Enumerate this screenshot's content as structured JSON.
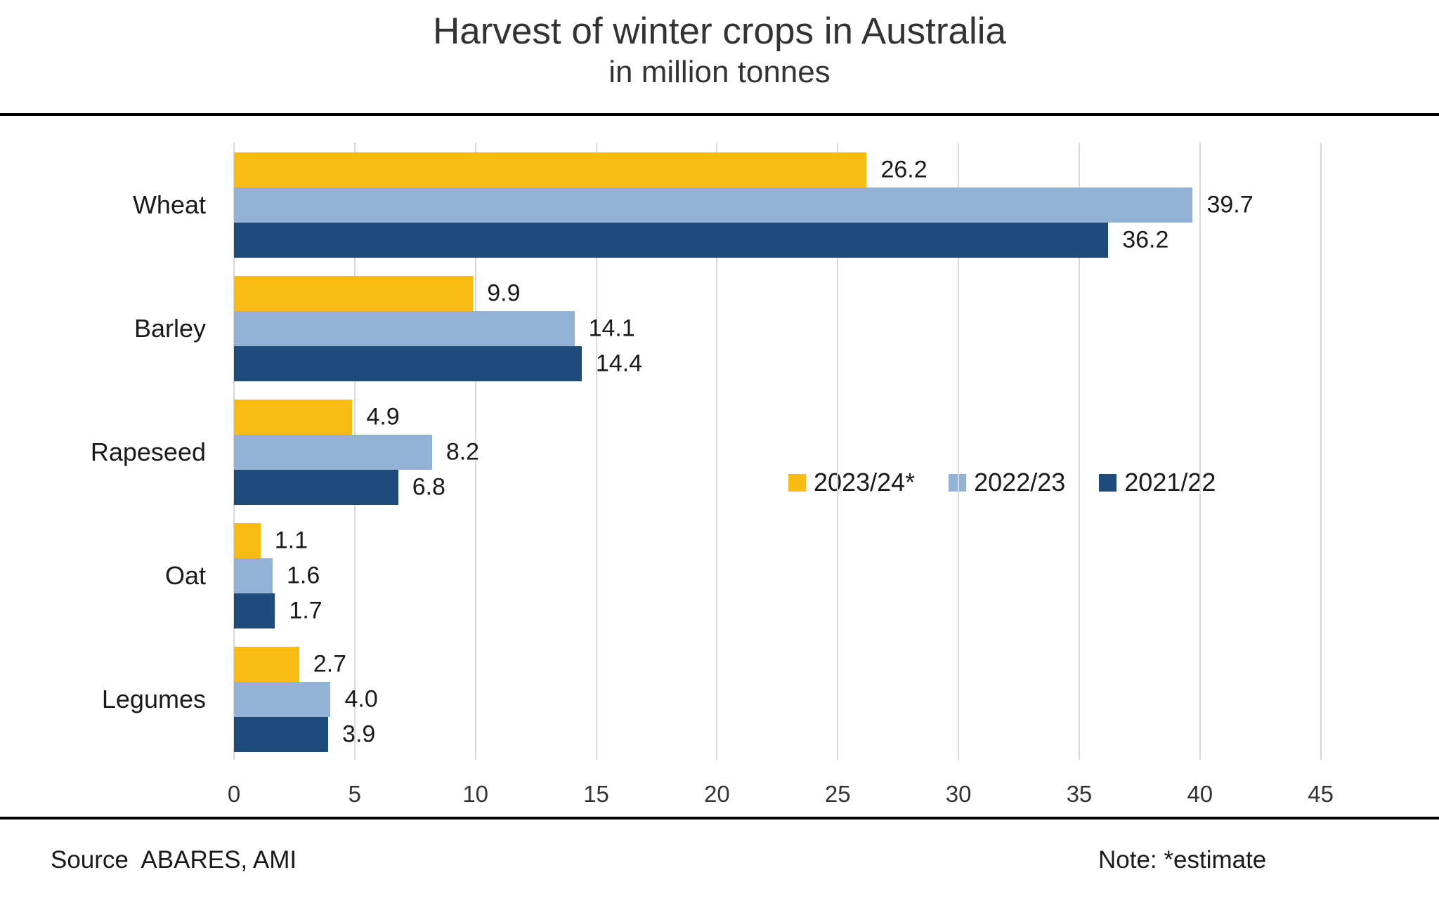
{
  "title": "Harvest of winter crops in Australia",
  "subtitle": "in million tonnes",
  "footer": {
    "source": "Source  ABARES, AMI",
    "note": "Note: *estimate"
  },
  "colors": {
    "grid": "#D9D9D9",
    "rule": "#000000",
    "text": "#1A1A1A",
    "series_2023_24": "#F9BC15",
    "series_2022_23": "#92B2D6",
    "series_2021_22": "#1F4A7C"
  },
  "chart_data": {
    "type": "bar",
    "orientation": "horizontal",
    "title": "Harvest of winter crops in Australia",
    "subtitle": "in million tonnes",
    "categories": [
      "Wheat",
      "Barley",
      "Rapeseed",
      "Oat",
      "Legumes"
    ],
    "series": [
      {
        "name": "2023/24*",
        "color": "#F9BC15",
        "values": [
          26.2,
          9.9,
          4.9,
          1.1,
          2.7
        ]
      },
      {
        "name": "2022/23",
        "color": "#92B2D6",
        "values": [
          39.7,
          14.1,
          8.2,
          1.6,
          4.0
        ]
      },
      {
        "name": "2021/22",
        "color": "#1F4A7C",
        "values": [
          36.2,
          14.4,
          6.8,
          1.7,
          3.9
        ]
      }
    ],
    "xlabel": "",
    "ylabel": "",
    "xlim": [
      0,
      45
    ],
    "x_ticks": [
      0,
      5,
      10,
      15,
      20,
      25,
      30,
      35,
      40,
      45
    ],
    "grid": "vertical",
    "value_labels": true,
    "value_label_format": "0.0",
    "legend_position": "middle-right"
  }
}
